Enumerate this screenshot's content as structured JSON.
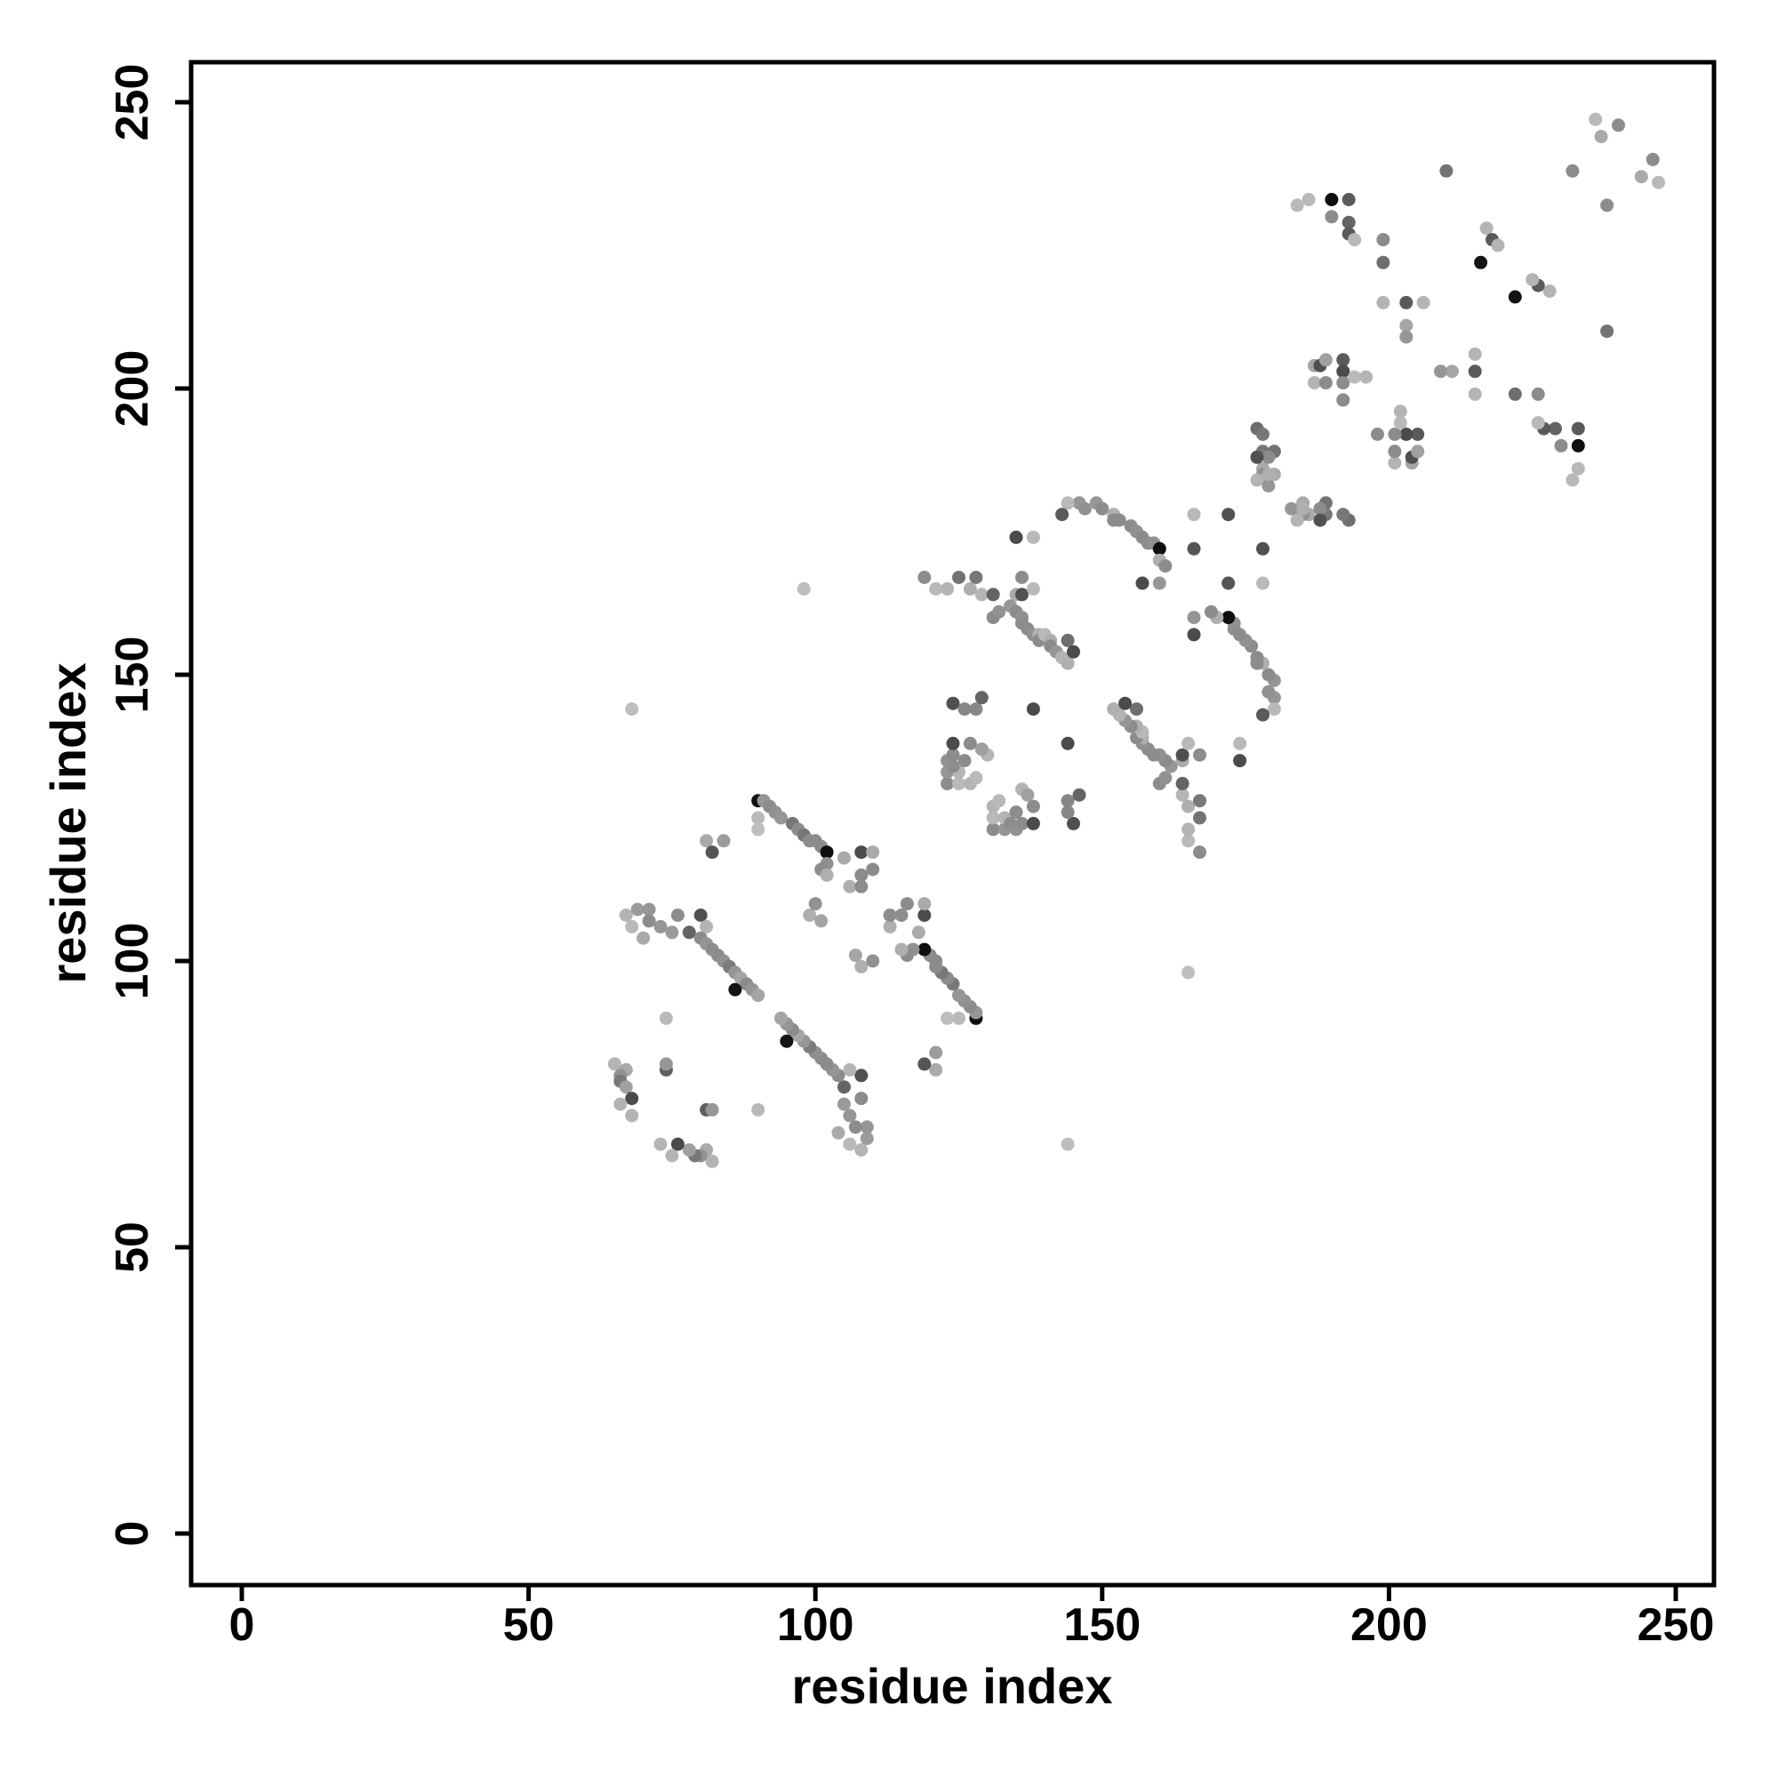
{
  "chart_data": {
    "type": "scatter",
    "title": "",
    "xlabel": "residue index",
    "ylabel": "residue index",
    "xlim": [
      0,
      250
    ],
    "ylim": [
      0,
      250
    ],
    "x_ticks": [
      0,
      50,
      100,
      150,
      200,
      250
    ],
    "y_ticks": [
      0,
      50,
      100,
      150,
      200,
      250
    ],
    "grid": false,
    "legend": "none",
    "background_color": "#ffffff",
    "axis_color": "#000000",
    "marker": {
      "shape": "circle",
      "radius_px": 7.5,
      "colormap": "grayscale"
    },
    "symmetric_mirror": true,
    "contacts_note": "Each contact [i, j, gray] is drawn at (i,j) and mirrored at (j,i); gray is 0-255 dot shade",
    "contacts": [
      [
        65,
        82,
        180
      ],
      [
        67,
        81,
        170
      ],
      [
        66,
        80,
        145
      ],
      [
        66,
        79,
        120
      ],
      [
        67,
        78,
        160
      ],
      [
        68,
        76,
        75
      ],
      [
        66,
        75,
        180
      ],
      [
        68,
        73,
        180
      ],
      [
        74,
        81,
        95
      ],
      [
        74,
        82,
        150
      ],
      [
        74,
        90,
        185
      ],
      [
        67,
        108,
        180
      ],
      [
        68,
        106,
        185
      ],
      [
        69,
        109,
        155
      ],
      [
        71,
        109,
        150
      ],
      [
        71,
        107,
        140
      ],
      [
        73,
        106,
        150
      ],
      [
        70,
        104,
        170
      ],
      [
        75,
        105,
        155
      ],
      [
        76,
        108,
        140
      ],
      [
        78,
        105,
        100
      ],
      [
        80,
        108,
        80
      ],
      [
        81,
        106,
        180
      ],
      [
        80,
        104,
        140
      ],
      [
        81,
        103,
        150
      ],
      [
        82,
        102,
        140
      ],
      [
        83,
        101,
        140
      ],
      [
        84,
        100,
        145
      ],
      [
        85,
        99,
        125
      ],
      [
        86,
        98,
        150
      ],
      [
        87,
        97,
        165
      ],
      [
        88,
        96,
        140
      ],
      [
        86,
        95,
        20
      ],
      [
        89,
        95,
        150
      ],
      [
        90,
        94,
        165
      ],
      [
        99,
        108,
        175
      ],
      [
        100,
        110,
        145
      ],
      [
        101,
        107,
        165
      ],
      [
        81,
        121,
        170
      ],
      [
        84,
        121,
        155
      ],
      [
        82,
        119,
        85
      ],
      [
        90,
        128,
        15
      ],
      [
        91,
        128,
        150
      ],
      [
        92,
        127,
        140
      ],
      [
        93,
        126,
        145
      ],
      [
        94,
        125,
        150
      ],
      [
        96,
        124,
        120
      ],
      [
        97,
        123,
        140
      ],
      [
        98,
        122,
        120
      ],
      [
        99,
        121,
        140
      ],
      [
        100,
        121,
        140
      ],
      [
        101,
        120,
        140
      ],
      [
        102,
        119,
        15
      ],
      [
        102,
        117,
        145
      ],
      [
        101,
        116,
        140
      ],
      [
        102,
        115,
        175
      ],
      [
        90,
        125,
        185
      ],
      [
        90,
        123,
        190
      ],
      [
        105,
        118,
        170
      ],
      [
        106,
        113,
        175
      ],
      [
        108,
        113,
        140
      ],
      [
        108,
        115,
        140
      ],
      [
        108,
        119,
        75
      ],
      [
        110,
        116,
        140
      ],
      [
        110,
        119,
        170
      ],
      [
        98,
        165,
        190
      ],
      [
        68,
        144,
        190
      ],
      [
        119,
        167,
        140
      ],
      [
        121,
        165,
        185
      ],
      [
        123,
        165,
        180
      ],
      [
        125,
        167,
        115
      ],
      [
        127,
        165,
        175
      ],
      [
        128,
        167,
        120
      ],
      [
        129,
        164,
        180
      ],
      [
        131,
        164,
        100
      ],
      [
        123,
        131,
        140
      ],
      [
        125,
        131,
        185
      ],
      [
        127,
        131,
        180
      ],
      [
        128,
        132,
        185
      ],
      [
        123,
        133,
        150
      ],
      [
        125,
        133,
        180
      ],
      [
        124,
        134,
        140
      ],
      [
        123,
        135,
        145
      ],
      [
        126,
        135,
        140
      ],
      [
        124,
        136,
        140
      ],
      [
        130,
        136,
        180
      ],
      [
        129,
        137,
        160
      ],
      [
        124,
        138,
        75
      ],
      [
        127,
        138,
        140
      ],
      [
        124,
        145,
        80
      ],
      [
        126,
        144,
        135
      ],
      [
        128,
        144,
        135
      ],
      [
        129,
        146,
        100
      ],
      [
        138,
        144,
        75
      ],
      [
        131,
        160,
        140
      ],
      [
        132,
        161,
        145
      ],
      [
        134,
        162,
        150
      ],
      [
        135,
        161,
        140
      ],
      [
        135,
        164,
        170
      ],
      [
        136,
        164,
        80
      ],
      [
        136,
        160,
        145
      ],
      [
        136,
        159,
        140
      ],
      [
        137,
        158,
        140
      ],
      [
        138,
        157,
        145
      ],
      [
        139,
        157,
        175
      ],
      [
        139,
        156,
        140
      ],
      [
        140,
        157,
        185
      ],
      [
        141,
        156,
        175
      ],
      [
        141,
        155,
        140
      ],
      [
        142,
        154,
        150
      ],
      [
        143,
        153,
        180
      ],
      [
        144,
        152,
        175
      ],
      [
        144,
        156,
        110
      ],
      [
        145,
        154,
        75
      ],
      [
        135,
        174,
        75
      ],
      [
        138,
        174,
        185
      ],
      [
        136,
        167,
        140
      ],
      [
        138,
        165,
        185
      ],
      [
        157,
        166,
        75
      ],
      [
        160,
        166,
        150
      ],
      [
        146,
        180,
        150
      ],
      [
        147,
        179,
        145
      ],
      [
        144,
        180,
        185
      ],
      [
        143,
        178,
        90
      ],
      [
        149,
        180,
        150
      ],
      [
        150,
        179,
        140
      ],
      [
        152,
        178,
        175
      ],
      [
        152,
        177,
        140
      ],
      [
        153,
        177,
        140
      ],
      [
        155,
        176,
        140
      ],
      [
        156,
        175,
        145
      ],
      [
        157,
        174,
        140
      ],
      [
        158,
        173,
        140
      ],
      [
        159,
        173,
        145
      ],
      [
        160,
        172,
        15
      ],
      [
        160,
        170,
        175
      ],
      [
        161,
        169,
        140
      ],
      [
        166,
        172,
        85
      ],
      [
        172,
        178,
        80
      ],
      [
        166,
        178,
        185
      ],
      [
        177,
        193,
        110
      ],
      [
        178,
        192,
        120
      ],
      [
        178,
        189,
        120
      ],
      [
        180,
        189,
        115
      ],
      [
        178,
        186,
        170
      ],
      [
        178,
        185,
        145
      ],
      [
        180,
        185,
        170
      ],
      [
        177,
        184,
        180
      ],
      [
        179,
        183,
        150
      ],
      [
        179,
        185,
        175
      ],
      [
        179,
        188,
        140
      ],
      [
        177,
        188,
        80
      ],
      [
        184,
        232,
        185
      ],
      [
        186,
        233,
        185
      ],
      [
        190,
        233,
        15
      ],
      [
        193,
        233,
        90
      ],
      [
        190,
        230,
        140
      ],
      [
        193,
        229,
        100
      ],
      [
        193,
        227,
        90
      ],
      [
        194,
        226,
        185
      ],
      [
        199,
        226,
        140
      ],
      [
        199,
        222,
        110
      ],
      [
        187,
        201,
        180
      ],
      [
        187,
        204,
        165
      ],
      [
        188,
        204,
        80
      ],
      [
        189,
        205,
        160
      ],
      [
        189,
        201,
        140
      ],
      [
        192,
        205,
        90
      ],
      [
        192,
        203,
        75
      ],
      [
        192,
        201,
        140
      ],
      [
        192,
        198,
        140
      ],
      [
        194,
        202,
        185
      ],
      [
        196,
        202,
        180
      ],
      [
        199,
        215,
        180
      ],
      [
        203,
        215,
        90
      ],
      [
        206,
        215,
        180
      ],
      [
        203,
        211,
        165
      ],
      [
        203,
        209,
        150
      ],
      [
        216,
        222,
        20
      ],
      [
        217,
        228,
        180
      ],
      [
        218,
        226,
        90
      ],
      [
        219,
        225,
        180
      ],
      [
        210,
        238,
        115
      ],
      [
        232,
        238,
        140
      ],
      [
        236,
        247,
        185
      ],
      [
        237,
        244,
        170
      ],
      [
        240,
        246,
        140
      ]
    ]
  },
  "layout_values": {
    "tick_font_px": 52,
    "title_font_px": 56
  }
}
